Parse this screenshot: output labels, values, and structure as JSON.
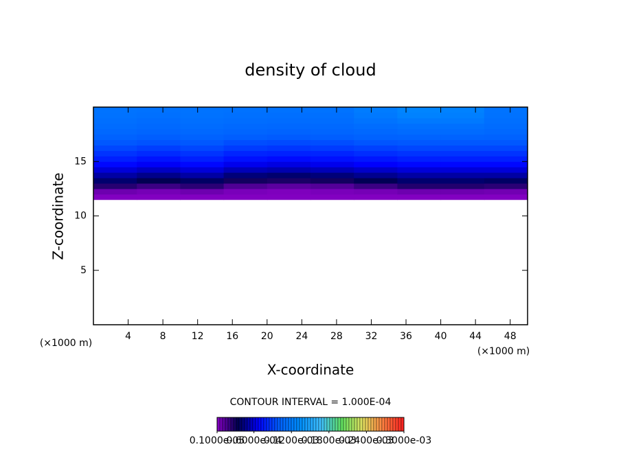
{
  "chart_data": {
    "type": "contour",
    "title": "density of cloud",
    "xlabel": "X-coordinate",
    "ylabel": "Z-coordinate",
    "x_unit_left": "(×1000 m)",
    "x_unit_right": "(×1000 m)",
    "xlim": [
      0,
      50
    ],
    "ylim": [
      0,
      20
    ],
    "xticks": [
      4,
      8,
      12,
      16,
      20,
      24,
      28,
      32,
      36,
      40,
      44,
      48
    ],
    "yticks": [
      5,
      10,
      15
    ],
    "x": [
      2.5,
      7.5,
      12.5,
      17.5,
      22.5,
      27.5,
      32.5,
      37.5,
      42.5,
      47.5
    ],
    "z": [
      11.75,
      12.25,
      12.75,
      13.25,
      13.75,
      14.25,
      14.75,
      15.25,
      15.75,
      16.25,
      16.75,
      17.25,
      17.75,
      18.25,
      18.75,
      19.25,
      19.75
    ],
    "values": [
      [
        3e-06,
        3e-06,
        3e-06,
        3e-06,
        3e-06,
        3e-06,
        3e-06,
        3e-06,
        3e-06,
        3e-06
      ],
      [
        8e-06,
        6e-06,
        8e-06,
        5e-06,
        4e-06,
        5e-06,
        6e-06,
        8e-06,
        8e-06,
        7e-06
      ],
      [
        2.5e-05,
        2e-05,
        2.4e-05,
        1.5e-05,
        1.2e-05,
        1.4e-05,
        2e-05,
        2.6e-05,
        2.6e-05,
        2.4e-05
      ],
      [
        4e-05,
        3.4e-05,
        3.8e-05,
        3e-05,
        2.8e-05,
        3e-05,
        3.5e-05,
        4e-05,
        4e-05,
        3.8e-05
      ],
      [
        5e-05,
        4.5e-05,
        5e-05,
        4.2e-05,
        4e-05,
        4.2e-05,
        4.6e-05,
        5e-05,
        5e-05,
        5e-05
      ],
      [
        6e-05,
        5.6e-05,
        6e-05,
        5.4e-05,
        5.2e-05,
        5.4e-05,
        5.7e-05,
        6e-05,
        6e-05,
        6e-05
      ],
      [
        7e-05,
        6.6e-05,
        7e-05,
        6.4e-05,
        6.2e-05,
        6.4e-05,
        6.7e-05,
        7e-05,
        7e-05,
        7e-05
      ],
      [
        7.8e-05,
        7.4e-05,
        7.8e-05,
        7.3e-05,
        7.1e-05,
        7.3e-05,
        7.5e-05,
        7.8e-05,
        7.8e-05,
        7.8e-05
      ],
      [
        8.5e-05,
        8.2e-05,
        8.5e-05,
        8e-05,
        7.9e-05,
        8e-05,
        8.3e-05,
        8.5e-05,
        8.5e-05,
        8.5e-05
      ],
      [
        9.2e-05,
        8.9e-05,
        9.2e-05,
        8.8e-05,
        8.6e-05,
        8.8e-05,
        9e-05,
        9.2e-05,
        9.2e-05,
        9.2e-05
      ],
      [
        9.8e-05,
        9.6e-05,
        9.8e-05,
        9.4e-05,
        9.3e-05,
        9.4e-05,
        9.7e-05,
        9.8e-05,
        9.8e-05,
        9.8e-05
      ],
      [
        0.000102,
        0.0001,
        0.000102,
        0.0001,
        9.9e-05,
        0.0001,
        0.000102,
        0.000103,
        0.000103,
        0.000102
      ],
      [
        0.000106,
        0.000104,
        0.000106,
        0.000104,
        0.000103,
        0.000104,
        0.000106,
        0.000108,
        0.000108,
        0.000106
      ],
      [
        0.000109,
        0.000107,
        0.000109,
        0.000107,
        0.000106,
        0.000107,
        0.00011,
        0.000112,
        0.000112,
        0.000109
      ],
      [
        0.000111,
        0.000109,
        0.000111,
        0.00011,
        0.000109,
        0.00011,
        0.000114,
        0.000118,
        0.000118,
        0.000111
      ],
      [
        0.000113,
        0.000112,
        0.000113,
        0.000112,
        0.000111,
        0.000112,
        0.000118,
        0.000124,
        0.000122,
        0.000113
      ],
      [
        0.000114,
        0.000113,
        0.000114,
        0.000113,
        0.000113,
        0.000114,
        0.00012,
        0.000126,
        0.000124,
        0.000114
      ]
    ],
    "contour_interval": "CONTOUR INTERVAL = 1.000E-04",
    "colorbar_lim": [
      1e-06,
      0.0003
    ],
    "colormap": [
      "#8a00c8",
      "#000050",
      "#0000ff",
      "#0060ff",
      "#0090ff",
      "#40c0ff",
      "#60e060",
      "#e0e060",
      "#ff8040",
      "#ff2020"
    ],
    "colorbar_ticks": [
      {
        "value": 1e-06,
        "label": "0.1000e-05"
      },
      {
        "value": 6e-05,
        "label": "0.6000e-04"
      },
      {
        "value": 0.00012,
        "label": "0.1200e-03"
      },
      {
        "value": 0.00018,
        "label": "0.1800e-03"
      },
      {
        "value": 0.00024,
        "label": "0.2400e-03"
      },
      {
        "value": 0.0003,
        "label": "0.3000e-03"
      }
    ]
  }
}
